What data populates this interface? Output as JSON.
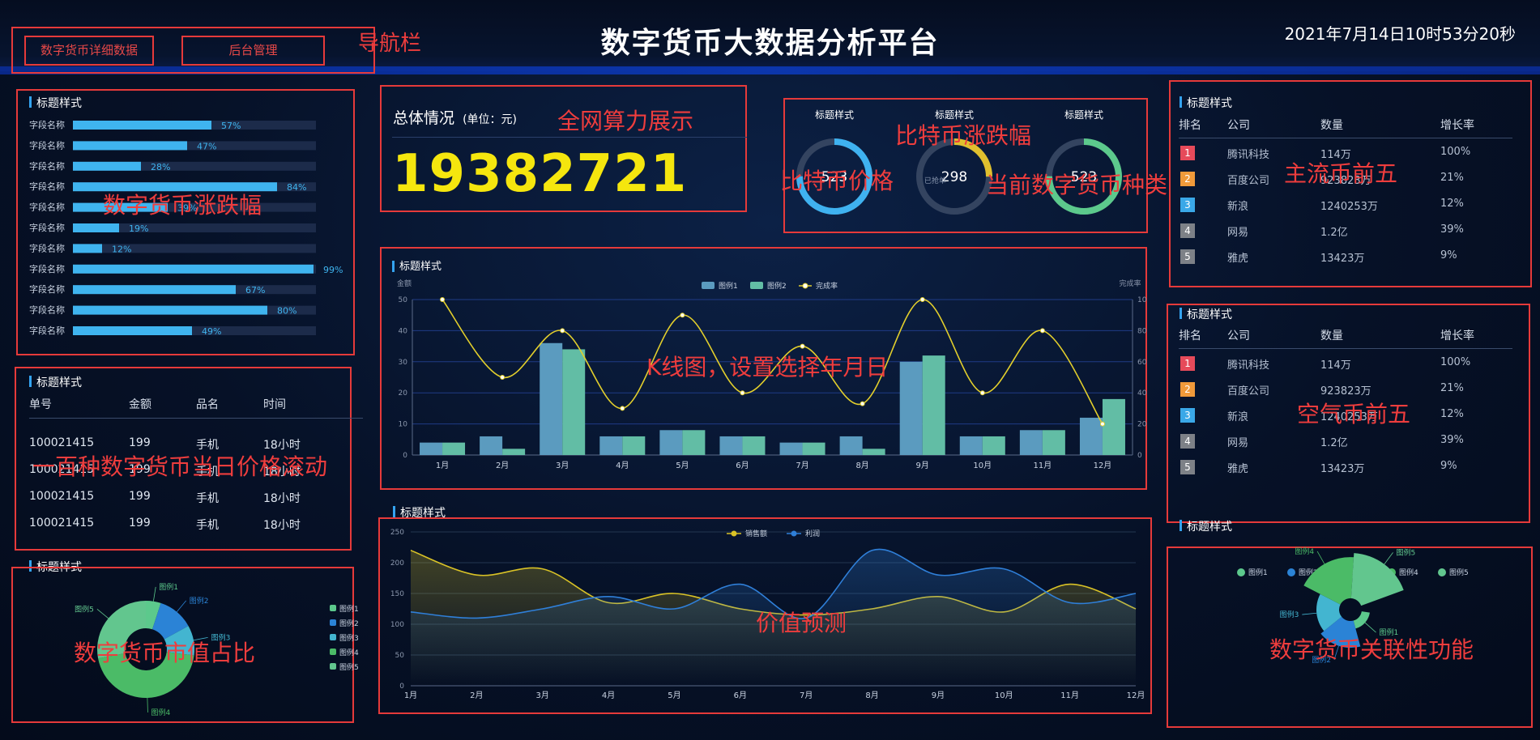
{
  "header": {
    "title": "数字货币大数据分析平台",
    "datetime": "2021年7月14日10时53分20秒"
  },
  "nav": {
    "buttons": [
      "数字货币详细数据",
      "后台管理"
    ],
    "annotation": "导航栏"
  },
  "annotations": {
    "bars": "数字货币涨跌幅",
    "total": "全网算力展示",
    "gauge_center": "比特币涨跌幅",
    "gauge_left": "比特币价格",
    "gauge_right": "当前数字货币种类",
    "top5_main": "主流币前五",
    "kline": "K线图，设置选择年月日",
    "scroll": "一百种数字货币当日价格滚动",
    "predict": "价值预测",
    "top5_air": "空气币前五",
    "pie": "数字货币市值占比",
    "relation": "数字货币关联性功能"
  },
  "panel_title": "标题样式",
  "left_bars": {
    "field_label": "字段名称",
    "values": [
      57,
      47,
      28,
      84,
      39,
      19,
      12,
      99,
      67,
      80,
      49
    ]
  },
  "total": {
    "label": "总体情况",
    "unit": "(单位：元)",
    "value": "19382721"
  },
  "gauges": [
    {
      "title": "标题样式",
      "value": "523",
      "percent": 75,
      "color": "#3fb2f0"
    },
    {
      "title": "标题样式",
      "value": "298",
      "sub": "已抢单",
      "percent": 25,
      "color": "#e0c02e"
    },
    {
      "title": "标题样式",
      "value": "523",
      "percent": 75,
      "color": "#5cc98c"
    }
  ],
  "ranking_main": {
    "headers": [
      "排名",
      "公司",
      "数量",
      "增长率"
    ],
    "rows": [
      {
        "rank": "1",
        "company": "腾讯科技",
        "amount": "114万",
        "growth": "100%",
        "color": "#e64a5a"
      },
      {
        "rank": "2",
        "company": "百度公司",
        "amount": "923823万",
        "growth": "21%",
        "color": "#f09a3a"
      },
      {
        "rank": "3",
        "company": "新浪",
        "amount": "1240253万",
        "growth": "12%",
        "color": "#3aa8e8"
      },
      {
        "rank": "4",
        "company": "网易",
        "amount": "1.2亿",
        "growth": "39%",
        "color": "#7d8187"
      },
      {
        "rank": "5",
        "company": "雅虎",
        "amount": "13423万",
        "growth": "9%",
        "color": "#7d8187"
      }
    ]
  },
  "ranking_air": {
    "headers": [
      "排名",
      "公司",
      "数量",
      "增长率"
    ],
    "rows": [
      {
        "rank": "1",
        "company": "腾讯科技",
        "amount": "114万",
        "growth": "100%",
        "color": "#e64a5a"
      },
      {
        "rank": "2",
        "company": "百度公司",
        "amount": "923823万",
        "growth": "21%",
        "color": "#f09a3a"
      },
      {
        "rank": "3",
        "company": "新浪",
        "amount": "1240253万",
        "growth": "12%",
        "color": "#3aa8e8"
      },
      {
        "rank": "4",
        "company": "网易",
        "amount": "1.2亿",
        "growth": "39%",
        "color": "#7d8187"
      },
      {
        "rank": "5",
        "company": "雅虎",
        "amount": "13423万",
        "growth": "9%",
        "color": "#7d8187"
      }
    ]
  },
  "scroll_table": {
    "headers": [
      "单号",
      "金额",
      "品名",
      "时间"
    ],
    "rows": [
      [
        "100021415",
        "199",
        "手机",
        "18小时"
      ],
      [
        "100021415",
        "199",
        "手机",
        "18小时"
      ],
      [
        "100021415",
        "199",
        "手机",
        "18小时"
      ],
      [
        "100021415",
        "199",
        "手机",
        "18小时"
      ]
    ]
  },
  "chart_data": [
    {
      "type": "bar",
      "title": "标题样式",
      "ylabel": "金额",
      "y2label": "完成率",
      "categories": [
        "1月",
        "2月",
        "3月",
        "4月",
        "5月",
        "6月",
        "7月",
        "8月",
        "9月",
        "10月",
        "11月",
        "12月"
      ],
      "ylim": [
        0,
        50
      ],
      "y2lim": [
        0,
        100
      ],
      "series": [
        {
          "name": "图例1",
          "type": "bar",
          "color": "#5b9bbf",
          "values": [
            4,
            6,
            36,
            6,
            8,
            6,
            4,
            6,
            30,
            6,
            8,
            12
          ]
        },
        {
          "name": "图例2",
          "type": "bar",
          "color": "#62bda5",
          "values": [
            4,
            2,
            34,
            6,
            8,
            6,
            4,
            2,
            32,
            6,
            8,
            18
          ]
        },
        {
          "name": "完成率",
          "type": "line",
          "color": "#e3cf2c",
          "axis": "y2",
          "values": [
            100,
            50,
            80,
            30,
            90,
            40,
            70,
            33,
            100,
            40,
            80,
            20
          ]
        }
      ]
    },
    {
      "type": "area",
      "title": "标题样式",
      "categories": [
        "1月",
        "2月",
        "3月",
        "4月",
        "5月",
        "6月",
        "7月",
        "8月",
        "9月",
        "10月",
        "11月",
        "12月"
      ],
      "ylim": [
        0,
        250
      ],
      "series": [
        {
          "name": "销售额",
          "color": "#d9c226",
          "values": [
            220,
            180,
            190,
            135,
            150,
            125,
            115,
            125,
            145,
            120,
            165,
            125
          ]
        },
        {
          "name": "利润",
          "color": "#2f7fd8",
          "values": [
            120,
            110,
            125,
            145,
            125,
            165,
            110,
            220,
            180,
            190,
            135,
            150
          ]
        }
      ]
    },
    {
      "type": "pie",
      "title": "标题样式",
      "categories": [
        "图例1",
        "图例2",
        "图例3",
        "图例4",
        "图例5"
      ],
      "values": [
        5,
        12,
        10,
        45,
        28
      ],
      "colors": [
        "#5cc98c",
        "#2b83d6",
        "#43b5d0",
        "#4bbb67",
        "#62c68e"
      ]
    },
    {
      "type": "pie",
      "title": "标题样式",
      "categories": [
        "图例1",
        "图例2",
        "图例3",
        "图例4",
        "图例5"
      ],
      "values": [
        4,
        13,
        11,
        20,
        22
      ],
      "colors": [
        "#5cc98c",
        "#2b83d6",
        "#43b5d0",
        "#4bbb67",
        "#62c68e"
      ]
    }
  ]
}
